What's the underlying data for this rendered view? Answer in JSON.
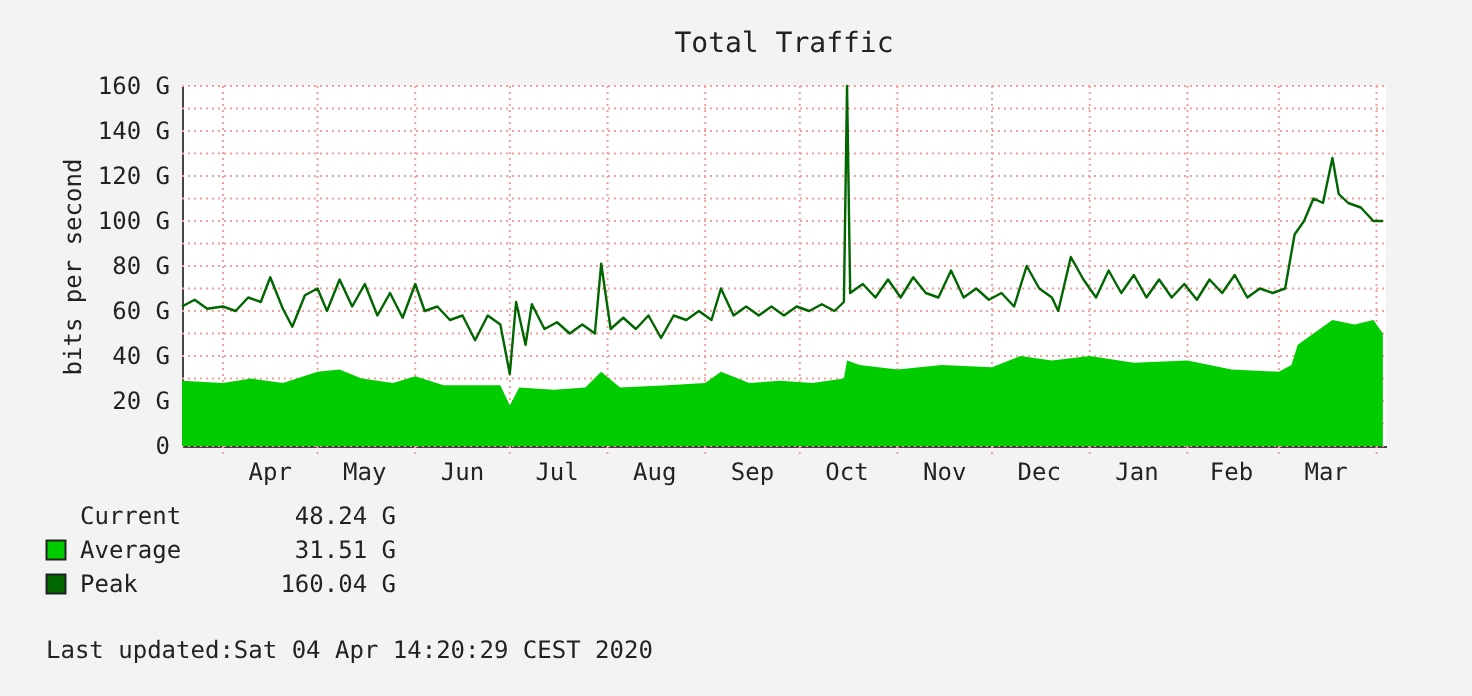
{
  "chart_data": {
    "type": "area",
    "title": "Total Traffic",
    "ylabel": "bits per second",
    "xlim": [
      "2019-03-19",
      "2020-04-04"
    ],
    "xticks": [
      {
        "value": "2019-04-01",
        "label": null
      },
      {
        "value": "2019-04-16",
        "label": "Apr"
      },
      {
        "value": "2019-05-01",
        "label": null
      },
      {
        "value": "2019-05-16",
        "label": "May"
      },
      {
        "value": "2019-06-01",
        "label": null
      },
      {
        "value": "2019-06-16",
        "label": "Jun"
      },
      {
        "value": "2019-07-01",
        "label": null
      },
      {
        "value": "2019-07-16",
        "label": "Jul"
      },
      {
        "value": "2019-08-01",
        "label": null
      },
      {
        "value": "2019-08-16",
        "label": "Aug"
      },
      {
        "value": "2019-09-01",
        "label": null
      },
      {
        "value": "2019-09-16",
        "label": "Sep"
      },
      {
        "value": "2019-10-01",
        "label": null
      },
      {
        "value": "2019-10-16",
        "label": "Oct"
      },
      {
        "value": "2019-11-01",
        "label": null
      },
      {
        "value": "2019-11-16",
        "label": "Nov"
      },
      {
        "value": "2019-12-01",
        "label": null
      },
      {
        "value": "2019-12-16",
        "label": "Dec"
      },
      {
        "value": "2020-01-01",
        "label": null
      },
      {
        "value": "2020-01-16",
        "label": "Jan"
      },
      {
        "value": "2020-02-01",
        "label": null
      },
      {
        "value": "2020-02-15",
        "label": "Feb"
      },
      {
        "value": "2020-03-01",
        "label": null
      },
      {
        "value": "2020-03-16",
        "label": "Mar"
      },
      {
        "value": "2020-04-01",
        "label": null
      }
    ],
    "ylim": [
      0,
      160
    ],
    "yticks": [
      {
        "value": 0,
        "label": "0"
      },
      {
        "value": 10,
        "label": null
      },
      {
        "value": 20,
        "label": "20 G"
      },
      {
        "value": 30,
        "label": null
      },
      {
        "value": 40,
        "label": "40 G"
      },
      {
        "value": 50,
        "label": null
      },
      {
        "value": 60,
        "label": "60 G"
      },
      {
        "value": 70,
        "label": null
      },
      {
        "value": 80,
        "label": "80 G"
      },
      {
        "value": 90,
        "label": null
      },
      {
        "value": 100,
        "label": "100 G"
      },
      {
        "value": 110,
        "label": null
      },
      {
        "value": 120,
        "label": "120 G"
      },
      {
        "value": 130,
        "label": null
      },
      {
        "value": 140,
        "label": "140 G"
      },
      {
        "value": 150,
        "label": null
      },
      {
        "value": 160,
        "label": "160 G"
      }
    ],
    "grid": true,
    "legend": "bottom",
    "annotations": [
      "Current",
      "48.24 G",
      "31.51 G",
      "160.04 G",
      "Last updated:Sat 04 Apr 14:20:29 CEST 2020"
    ],
    "series": [
      {
        "name": "Average",
        "type": "area",
        "color": "#00cc00",
        "x": [
          "2019-03-19",
          "2019-04-01",
          "2019-04-10",
          "2019-04-20",
          "2019-05-01",
          "2019-05-08",
          "2019-05-15",
          "2019-05-25",
          "2019-06-01",
          "2019-06-10",
          "2019-06-20",
          "2019-06-28",
          "2019-07-01",
          "2019-07-04",
          "2019-07-15",
          "2019-07-25",
          "2019-07-30",
          "2019-08-05",
          "2019-08-20",
          "2019-09-01",
          "2019-09-06",
          "2019-09-15",
          "2019-09-25",
          "2019-10-05",
          "2019-10-15",
          "2019-10-16",
          "2019-10-20",
          "2019-11-01",
          "2019-11-15",
          "2019-12-01",
          "2019-12-10",
          "2019-12-20",
          "2020-01-01",
          "2020-01-15",
          "2020-02-01",
          "2020-02-15",
          "2020-03-01",
          "2020-03-05",
          "2020-03-07",
          "2020-03-12",
          "2020-03-18",
          "2020-03-25",
          "2020-03-31",
          "2020-04-03"
        ],
        "values": [
          29,
          28,
          30,
          28,
          33,
          34,
          30,
          28,
          31,
          27,
          27,
          27,
          18,
          26,
          25,
          26,
          33,
          26,
          27,
          28,
          33,
          28,
          29,
          28,
          30,
          38,
          36,
          34,
          36,
          35,
          40,
          38,
          40,
          37,
          38,
          34,
          33,
          36,
          45,
          50,
          56,
          54,
          56,
          50
        ]
      },
      {
        "name": "Peak",
        "type": "line",
        "color": "#006600",
        "x": [
          "2019-03-19",
          "2019-03-23",
          "2019-03-27",
          "2019-04-01",
          "2019-04-05",
          "2019-04-09",
          "2019-04-13",
          "2019-04-16",
          "2019-04-20",
          "2019-04-23",
          "2019-04-27",
          "2019-05-01",
          "2019-05-04",
          "2019-05-08",
          "2019-05-12",
          "2019-05-16",
          "2019-05-20",
          "2019-05-24",
          "2019-05-28",
          "2019-06-01",
          "2019-06-04",
          "2019-06-08",
          "2019-06-12",
          "2019-06-16",
          "2019-06-20",
          "2019-06-24",
          "2019-06-28",
          "2019-07-01",
          "2019-07-03",
          "2019-07-06",
          "2019-07-08",
          "2019-07-12",
          "2019-07-16",
          "2019-07-20",
          "2019-07-24",
          "2019-07-28",
          "2019-07-30",
          "2019-08-02",
          "2019-08-06",
          "2019-08-10",
          "2019-08-14",
          "2019-08-18",
          "2019-08-22",
          "2019-08-26",
          "2019-08-30",
          "2019-09-03",
          "2019-09-06",
          "2019-09-10",
          "2019-09-14",
          "2019-09-18",
          "2019-09-22",
          "2019-09-26",
          "2019-09-30",
          "2019-10-04",
          "2019-10-08",
          "2019-10-12",
          "2019-10-15",
          "2019-10-16",
          "2019-10-17",
          "2019-10-21",
          "2019-10-25",
          "2019-10-29",
          "2019-11-02",
          "2019-11-06",
          "2019-11-10",
          "2019-11-14",
          "2019-11-18",
          "2019-11-22",
          "2019-11-26",
          "2019-11-30",
          "2019-12-04",
          "2019-12-08",
          "2019-12-12",
          "2019-12-16",
          "2019-12-20",
          "2019-12-22",
          "2019-12-26",
          "2019-12-30",
          "2020-01-03",
          "2020-01-07",
          "2020-01-11",
          "2020-01-15",
          "2020-01-19",
          "2020-01-23",
          "2020-01-27",
          "2020-01-31",
          "2020-02-04",
          "2020-02-08",
          "2020-02-12",
          "2020-02-16",
          "2020-02-20",
          "2020-02-24",
          "2020-02-28",
          "2020-03-03",
          "2020-03-06",
          "2020-03-09",
          "2020-03-12",
          "2020-03-15",
          "2020-03-18",
          "2020-03-20",
          "2020-03-23",
          "2020-03-27",
          "2020-03-31",
          "2020-04-03"
        ],
        "values": [
          62,
          65,
          61,
          62,
          60,
          66,
          64,
          75,
          61,
          53,
          67,
          70,
          60,
          74,
          62,
          72,
          58,
          68,
          57,
          72,
          60,
          62,
          56,
          58,
          47,
          58,
          54,
          32,
          64,
          45,
          63,
          52,
          55,
          50,
          54,
          50,
          81,
          52,
          57,
          52,
          58,
          48,
          58,
          56,
          60,
          56,
          70,
          58,
          62,
          58,
          62,
          58,
          62,
          60,
          63,
          60,
          64,
          160,
          68,
          72,
          66,
          74,
          66,
          75,
          68,
          66,
          78,
          66,
          70,
          65,
          68,
          62,
          80,
          70,
          66,
          60,
          84,
          74,
          66,
          78,
          68,
          76,
          66,
          74,
          66,
          72,
          65,
          74,
          68,
          76,
          66,
          70,
          68,
          70,
          94,
          100,
          110,
          108,
          128,
          112,
          108,
          106,
          100,
          100
        ]
      }
    ]
  }
}
